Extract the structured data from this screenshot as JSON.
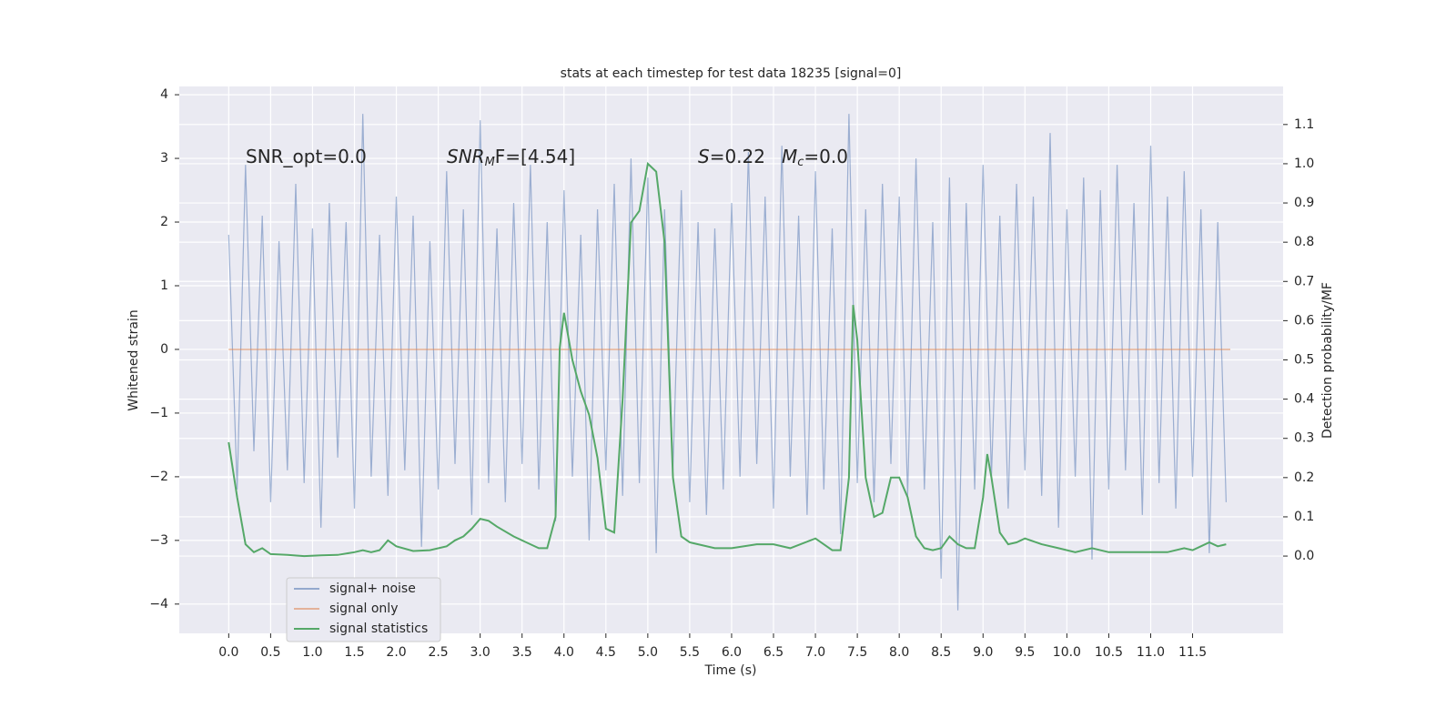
{
  "chart_data": {
    "type": "line",
    "title": "stats at each timestep for test data 18235 [signal=0]",
    "xlabel": "Time (s)",
    "ylabel": "Whitened strain",
    "y2label": "Detection probability/MF",
    "xlim": [
      -0.59,
      12.58
    ],
    "ylim": [
      -4.46,
      4.13
    ],
    "y2lim": [
      -0.197,
      1.197
    ],
    "xticks": [
      {
        "value": 0,
        "label": "0.0"
      },
      {
        "value": 0.5,
        "label": "0.5"
      },
      {
        "value": 1,
        "label": "1.0"
      },
      {
        "value": 1.5,
        "label": "1.5"
      },
      {
        "value": 2,
        "label": "2.0"
      },
      {
        "value": 2.5,
        "label": "2.5"
      },
      {
        "value": 3,
        "label": "3.0"
      },
      {
        "value": 3.5,
        "label": "3.5"
      },
      {
        "value": 4,
        "label": "4.0"
      },
      {
        "value": 4.5,
        "label": "4.5"
      },
      {
        "value": 5,
        "label": "5.0"
      },
      {
        "value": 5.5,
        "label": "5.5"
      },
      {
        "value": 6,
        "label": "6.0"
      },
      {
        "value": 6.5,
        "label": "6.5"
      },
      {
        "value": 7,
        "label": "7.0"
      },
      {
        "value": 7.5,
        "label": "7.5"
      },
      {
        "value": 8,
        "label": "8.0"
      },
      {
        "value": 8.5,
        "label": "8.5"
      },
      {
        "value": 9,
        "label": "9.0"
      },
      {
        "value": 9.5,
        "label": "9.5"
      },
      {
        "value": 10,
        "label": "10.0"
      },
      {
        "value": 10.5,
        "label": "10.5"
      },
      {
        "value": 11,
        "label": "11.0"
      },
      {
        "value": 11.5,
        "label": "11.5"
      }
    ],
    "yticks": [
      {
        "value": -4,
        "label": "−4"
      },
      {
        "value": -3,
        "label": "−3"
      },
      {
        "value": -2,
        "label": "−2"
      },
      {
        "value": -1,
        "label": "−1"
      },
      0,
      1,
      2,
      3,
      4
    ],
    "y2ticks": [
      {
        "value": 0,
        "label": "0.0"
      },
      {
        "value": 0.1,
        "label": "0.1"
      },
      {
        "value": 0.2,
        "label": "0.2"
      },
      {
        "value": 0.3,
        "label": "0.3"
      },
      {
        "value": 0.4,
        "label": "0.4"
      },
      {
        "value": 0.5,
        "label": "0.5"
      },
      {
        "value": 0.6,
        "label": "0.6"
      },
      {
        "value": 0.7,
        "label": "0.7"
      },
      {
        "value": 0.8,
        "label": "0.8"
      },
      {
        "value": 0.9,
        "label": "0.9"
      },
      {
        "value": 1,
        "label": "1.0"
      },
      {
        "value": 1.1,
        "label": "1.1"
      }
    ],
    "grid": true,
    "legend": "lower left",
    "annotations": [
      {
        "base": "SNR_opt=0.0"
      },
      {
        "base": "SNR",
        "sub": "M",
        "rest": "F=[4.54]"
      },
      {
        "base": "S",
        "rest": "=0.22"
      },
      {
        "base": "M",
        "sub": "c",
        "rest": "=0.0"
      }
    ],
    "series": [
      {
        "name": "signal+ noise",
        "color": "#4c72b0",
        "x": [
          0,
          0.1,
          0.2,
          0.3,
          0.4,
          0.5,
          0.6,
          0.7,
          0.8,
          0.9,
          1,
          1.1,
          1.2,
          1.3,
          1.4,
          1.5,
          1.6,
          1.7,
          1.8,
          1.9,
          2,
          2.1,
          2.2,
          2.3,
          2.4,
          2.5,
          2.6,
          2.7,
          2.8,
          2.9,
          3,
          3.1,
          3.2,
          3.3,
          3.4,
          3.5,
          3.6,
          3.7,
          3.8,
          3.9,
          4,
          4.1,
          4.2,
          4.3,
          4.4,
          4.5,
          4.6,
          4.7,
          4.8,
          4.9,
          5,
          5.1,
          5.2,
          5.3,
          5.4,
          5.5,
          5.6,
          5.7,
          5.8,
          5.9,
          6,
          6.1,
          6.2,
          6.3,
          6.4,
          6.5,
          6.6,
          6.7,
          6.8,
          6.9,
          7,
          7.1,
          7.2,
          7.3,
          7.4,
          7.5,
          7.6,
          7.7,
          7.8,
          7.9,
          8,
          8.1,
          8.2,
          8.3,
          8.4,
          8.5,
          8.6,
          8.7,
          8.8,
          8.9,
          9,
          9.1,
          9.2,
          9.3,
          9.4,
          9.5,
          9.6,
          9.7,
          9.8,
          9.9,
          10,
          10.1,
          10.2,
          10.3,
          10.4,
          10.5,
          10.6,
          10.7,
          10.8,
          10.9,
          11,
          11.1,
          11.2,
          11.3,
          11.4,
          11.5,
          11.6,
          11.7,
          11.8,
          11.9
        ],
        "values": [
          1.8,
          -2.2,
          2.9,
          -1.6,
          2.1,
          -2.4,
          1.7,
          -1.9,
          2.6,
          -2.1,
          1.9,
          -2.8,
          2.3,
          -1.7,
          2.0,
          -2.5,
          3.7,
          -2.0,
          1.8,
          -2.3,
          2.4,
          -1.9,
          2.1,
          -3.1,
          1.7,
          -2.2,
          2.8,
          -1.8,
          2.2,
          -2.6,
          3.6,
          -2.1,
          1.9,
          -2.4,
          2.3,
          -1.8,
          2.9,
          -2.2,
          2.0,
          -2.7,
          2.5,
          -2.0,
          1.8,
          -3.0,
          2.2,
          -1.9,
          2.6,
          -2.3,
          3.0,
          -2.1,
          2.7,
          -3.2,
          2.2,
          -1.9,
          2.5,
          -2.4,
          2.0,
          -2.6,
          1.9,
          -2.2,
          2.3,
          -2.0,
          3.1,
          -1.8,
          2.4,
          -2.5,
          3.2,
          -2.0,
          2.1,
          -2.6,
          2.8,
          -2.2,
          1.9,
          -2.9,
          3.7,
          -2.1,
          2.2,
          -2.4,
          2.6,
          -1.8,
          2.4,
          -2.3,
          3.0,
          -2.2,
          2.0,
          -3.6,
          2.7,
          -4.1,
          2.3,
          -2.2,
          2.9,
          -2.0,
          2.1,
          -2.5,
          2.6,
          -1.9,
          2.4,
          -2.3,
          3.4,
          -2.8,
          2.2,
          -2.0,
          2.7,
          -3.3,
          2.5,
          -2.2,
          2.9,
          -1.9,
          2.3,
          -2.6,
          3.2,
          -2.1,
          2.4,
          -2.5,
          2.8,
          -2.0,
          2.2,
          -3.2,
          2.0,
          -2.4
        ]
      },
      {
        "name": "signal only",
        "color": "#dd8452",
        "x": [
          0,
          11.95
        ],
        "values": [
          0,
          0
        ]
      },
      {
        "name": "signal statistics",
        "color": "#55a868",
        "axis": "y2",
        "x": [
          0,
          0.1,
          0.2,
          0.3,
          0.4,
          0.5,
          0.7,
          0.9,
          1.1,
          1.3,
          1.5,
          1.6,
          1.7,
          1.8,
          1.9,
          2.0,
          2.2,
          2.4,
          2.6,
          2.7,
          2.8,
          2.9,
          3.0,
          3.1,
          3.2,
          3.4,
          3.6,
          3.7,
          3.8,
          3.9,
          3.95,
          4.0,
          4.1,
          4.2,
          4.3,
          4.4,
          4.5,
          4.6,
          4.7,
          4.8,
          4.9,
          5.0,
          5.1,
          5.2,
          5.3,
          5.4,
          5.5,
          5.6,
          5.8,
          6.0,
          6.3,
          6.5,
          6.7,
          7.0,
          7.2,
          7.3,
          7.4,
          7.45,
          7.5,
          7.6,
          7.7,
          7.8,
          7.9,
          8.0,
          8.1,
          8.2,
          8.3,
          8.4,
          8.5,
          8.6,
          8.7,
          8.8,
          8.9,
          9.0,
          9.05,
          9.1,
          9.2,
          9.3,
          9.4,
          9.5,
          9.7,
          9.9,
          10.1,
          10.3,
          10.5,
          10.8,
          11.0,
          11.2,
          11.4,
          11.5,
          11.6,
          11.7,
          11.8,
          11.9
        ],
        "values": [
          0.29,
          0.15,
          0.03,
          0.01,
          0.02,
          0.005,
          0.003,
          0,
          0.002,
          0.003,
          0.01,
          0.015,
          0.01,
          0.015,
          0.04,
          0.025,
          0.013,
          0.015,
          0.025,
          0.04,
          0.05,
          0.07,
          0.095,
          0.09,
          0.075,
          0.05,
          0.03,
          0.02,
          0.02,
          0.1,
          0.53,
          0.62,
          0.5,
          0.42,
          0.36,
          0.25,
          0.07,
          0.06,
          0.4,
          0.85,
          0.88,
          1.0,
          0.98,
          0.8,
          0.2,
          0.05,
          0.035,
          0.03,
          0.02,
          0.02,
          0.03,
          0.03,
          0.02,
          0.045,
          0.015,
          0.015,
          0.2,
          0.64,
          0.55,
          0.2,
          0.1,
          0.11,
          0.2,
          0.2,
          0.15,
          0.05,
          0.02,
          0.015,
          0.02,
          0.05,
          0.03,
          0.02,
          0.02,
          0.15,
          0.26,
          0.2,
          0.06,
          0.03,
          0.035,
          0.045,
          0.03,
          0.02,
          0.01,
          0.02,
          0.01,
          0.01,
          0.01,
          0.01,
          0.02,
          0.015,
          0.025,
          0.035,
          0.025,
          0.03
        ]
      }
    ]
  }
}
